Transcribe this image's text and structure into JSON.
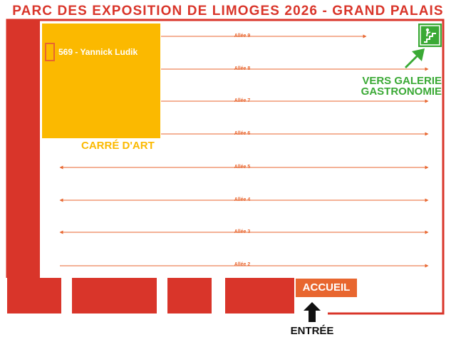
{
  "title": "PARC DES EXPOSITION DE LIMOGES 2026 - GRAND PALAIS",
  "carre_label": "CARRÉ D'ART",
  "stand": {
    "number_label": "569 - Yannick Ludik"
  },
  "aisles": [
    {
      "label": "Allée 9",
      "direction": "right"
    },
    {
      "label": "Allée 8",
      "direction": "right"
    },
    {
      "label": "Allée 7",
      "direction": "right"
    },
    {
      "label": "Allée 6",
      "direction": "right"
    },
    {
      "label": "Allée 5",
      "direction": "both"
    },
    {
      "label": "Allée 4",
      "direction": "both"
    },
    {
      "label": "Allée 3",
      "direction": "both"
    },
    {
      "label": "Allée 2",
      "direction": "right"
    }
  ],
  "galerie": {
    "line1": "VERS GALERIE",
    "line2": "GASTRONOMIE"
  },
  "accueil": "ACCUEIL",
  "entree": "ENTRÉE",
  "icons": {
    "exit": "stairs-exit-icon",
    "galerie_arrow": "arrow-up-right-icon",
    "entrance_arrow": "arrow-up-icon"
  },
  "colors": {
    "wall": "#d9352a",
    "aisle": "#e8662f",
    "carre": "#fbb900",
    "galerie": "#3aa935"
  }
}
